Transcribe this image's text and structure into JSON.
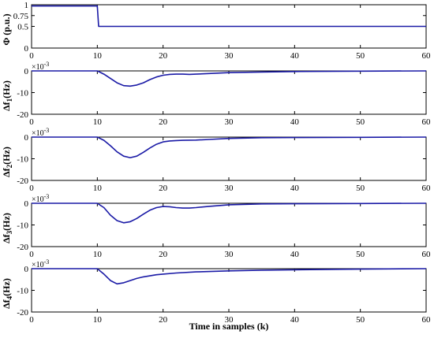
{
  "xlabel": "Time in samples (k)",
  "chart_data": [
    {
      "type": "line",
      "ylabel": "Φ (p.u.)",
      "xlim": [
        0,
        60
      ],
      "ylim": [
        0,
        1
      ],
      "xticks": [
        "0",
        "10",
        "20",
        "30",
        "40",
        "50",
        "60"
      ],
      "yticks": [
        {
          "value": 1,
          "label": "1"
        },
        {
          "value": 0.75,
          "label": "0.75"
        },
        {
          "value": 0.5,
          "label": "0.5"
        },
        {
          "value": 0,
          "label": "0"
        }
      ],
      "exponent": "",
      "line_color": "#1a1aa6",
      "series": [
        {
          "x": [
            0,
            10,
            10.2,
            60
          ],
          "y": [
            0.97,
            0.97,
            0.5,
            0.5
          ]
        }
      ]
    },
    {
      "type": "line",
      "ylabel_main": "Δf",
      "ylabel_sub": "1",
      "ylabel_unit": "(Hz)",
      "xlim": [
        0,
        60
      ],
      "ylim": [
        -20,
        0
      ],
      "xticks": [
        "0",
        "10",
        "20",
        "30",
        "40",
        "50",
        "60"
      ],
      "yticks": [
        {
          "value": 0,
          "label": "0"
        },
        {
          "value": -10,
          "label": "-10"
        },
        {
          "value": -20,
          "label": "-20"
        }
      ],
      "exponent": "×10",
      "exponent_power": "-3",
      "line_color": "#1a1aa6",
      "series": [
        {
          "x": [
            0,
            10,
            11,
            12,
            13,
            14,
            15,
            16,
            17,
            18,
            19,
            20,
            21,
            22,
            23,
            24,
            25,
            27,
            30,
            35,
            40,
            50,
            60
          ],
          "y": [
            0,
            0,
            -1.5,
            -3.5,
            -5.5,
            -6.8,
            -7,
            -6.5,
            -5.5,
            -4,
            -2.8,
            -2,
            -1.6,
            -1.5,
            -1.5,
            -1.6,
            -1.5,
            -1.2,
            -0.8,
            -0.5,
            -0.3,
            -0.1,
            0
          ]
        }
      ]
    },
    {
      "type": "line",
      "ylabel_main": "Δf",
      "ylabel_sub": "2",
      "ylabel_unit": "(Hz)",
      "xlim": [
        0,
        60
      ],
      "ylim": [
        -20,
        0
      ],
      "xticks": [
        "0",
        "10",
        "20",
        "30",
        "40",
        "50",
        "60"
      ],
      "yticks": [
        {
          "value": 0,
          "label": "0"
        },
        {
          "value": -10,
          "label": "-10"
        },
        {
          "value": -20,
          "label": "-20"
        }
      ],
      "exponent": "×10",
      "exponent_power": "-3",
      "line_color": "#1a1aa6",
      "series": [
        {
          "x": [
            0,
            10,
            11,
            12,
            13,
            14,
            15,
            16,
            17,
            18,
            19,
            20,
            21,
            22,
            23,
            25,
            27,
            30,
            35,
            40,
            50,
            60
          ],
          "y": [
            0,
            0,
            -1.5,
            -4,
            -6.8,
            -8.8,
            -9.5,
            -8.8,
            -7,
            -5,
            -3.3,
            -2.2,
            -1.8,
            -1.6,
            -1.5,
            -1.4,
            -1.1,
            -0.6,
            -0.3,
            -0.2,
            -0.1,
            0
          ]
        }
      ]
    },
    {
      "type": "line",
      "ylabel_main": "Δf",
      "ylabel_sub": "3",
      "ylabel_unit": "(Hz)",
      "xlim": [
        0,
        60
      ],
      "ylim": [
        -20,
        0
      ],
      "xticks": [
        "0",
        "10",
        "20",
        "30",
        "40",
        "50",
        "60"
      ],
      "yticks": [
        {
          "value": 0,
          "label": "0"
        },
        {
          "value": -10,
          "label": "-10"
        },
        {
          "value": -20,
          "label": "-20"
        }
      ],
      "exponent": "×10",
      "exponent_power": "-3",
      "line_color": "#1a1aa6",
      "series": [
        {
          "x": [
            0,
            10,
            11,
            12,
            13,
            14,
            15,
            16,
            17,
            18,
            19,
            20,
            21,
            22,
            23,
            24,
            25,
            27,
            30,
            35,
            40,
            50,
            60
          ],
          "y": [
            0,
            0,
            -2,
            -5.5,
            -8,
            -9,
            -8.5,
            -7,
            -5,
            -3.2,
            -2,
            -1.5,
            -1.6,
            -2,
            -2.2,
            -2.2,
            -2,
            -1.4,
            -0.7,
            -0.3,
            -0.2,
            -0.1,
            0
          ]
        }
      ]
    },
    {
      "type": "line",
      "ylabel_main": "Δf",
      "ylabel_sub": "4",
      "ylabel_unit": "(Hz)",
      "xlim": [
        0,
        60
      ],
      "ylim": [
        -20,
        0
      ],
      "xticks": [
        "0",
        "10",
        "20",
        "30",
        "40",
        "50",
        "60"
      ],
      "yticks": [
        {
          "value": 0,
          "label": "0"
        },
        {
          "value": -10,
          "label": "-10"
        },
        {
          "value": -20,
          "label": "-20"
        }
      ],
      "exponent": "×10",
      "exponent_power": "-3",
      "line_color": "#1a1aa6",
      "series": [
        {
          "x": [
            0,
            10,
            11,
            12,
            13,
            14,
            15,
            16,
            17,
            18,
            19,
            20,
            22,
            25,
            30,
            35,
            40,
            50,
            60
          ],
          "y": [
            0,
            0,
            -2.5,
            -5.5,
            -7,
            -6.5,
            -5.5,
            -4.5,
            -3.8,
            -3.3,
            -2.8,
            -2.5,
            -2,
            -1.5,
            -1,
            -0.7,
            -0.5,
            -0.2,
            0
          ]
        }
      ]
    }
  ]
}
